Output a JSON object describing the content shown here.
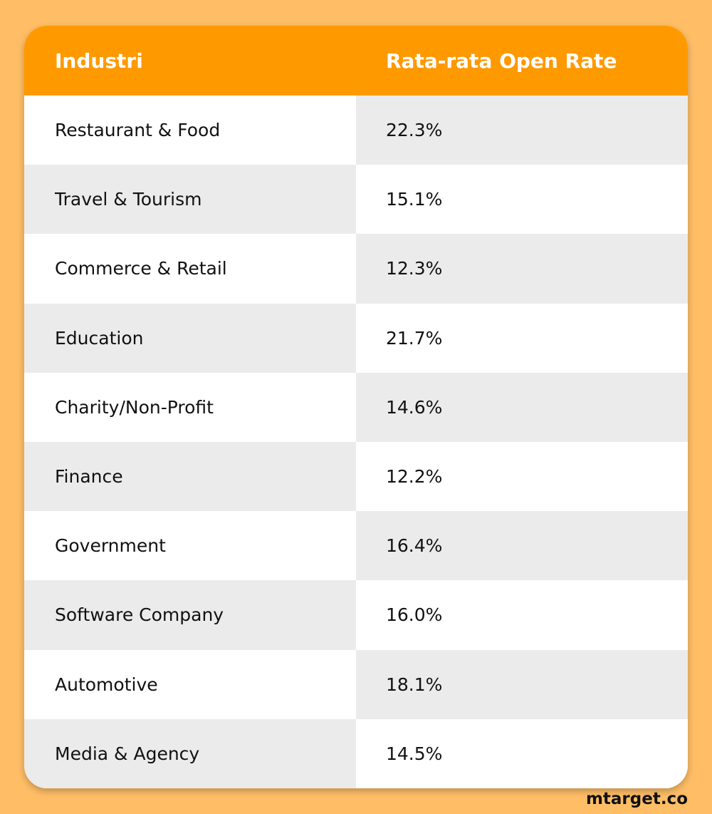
{
  "table": {
    "header": [
      "Industri",
      "Rata-rata Open Rate"
    ],
    "rows": [
      [
        "Restaurant & Food",
        "22.3%"
      ],
      [
        "Travel & Tourism",
        "15.1%"
      ],
      [
        "Commerce & Retail",
        "12.3%"
      ],
      [
        "Education",
        "21.7%"
      ],
      [
        "Charity/Non-Profit",
        "14.6%"
      ],
      [
        "Finance",
        "12.2%"
      ],
      [
        "Government",
        "16.4%"
      ],
      [
        "Software Company",
        "16.0%"
      ],
      [
        "Automotive",
        "18.1%"
      ],
      [
        "Media & Agency",
        "14.5%"
      ]
    ]
  },
  "footer": {
    "brand": "mtarget.co"
  }
}
